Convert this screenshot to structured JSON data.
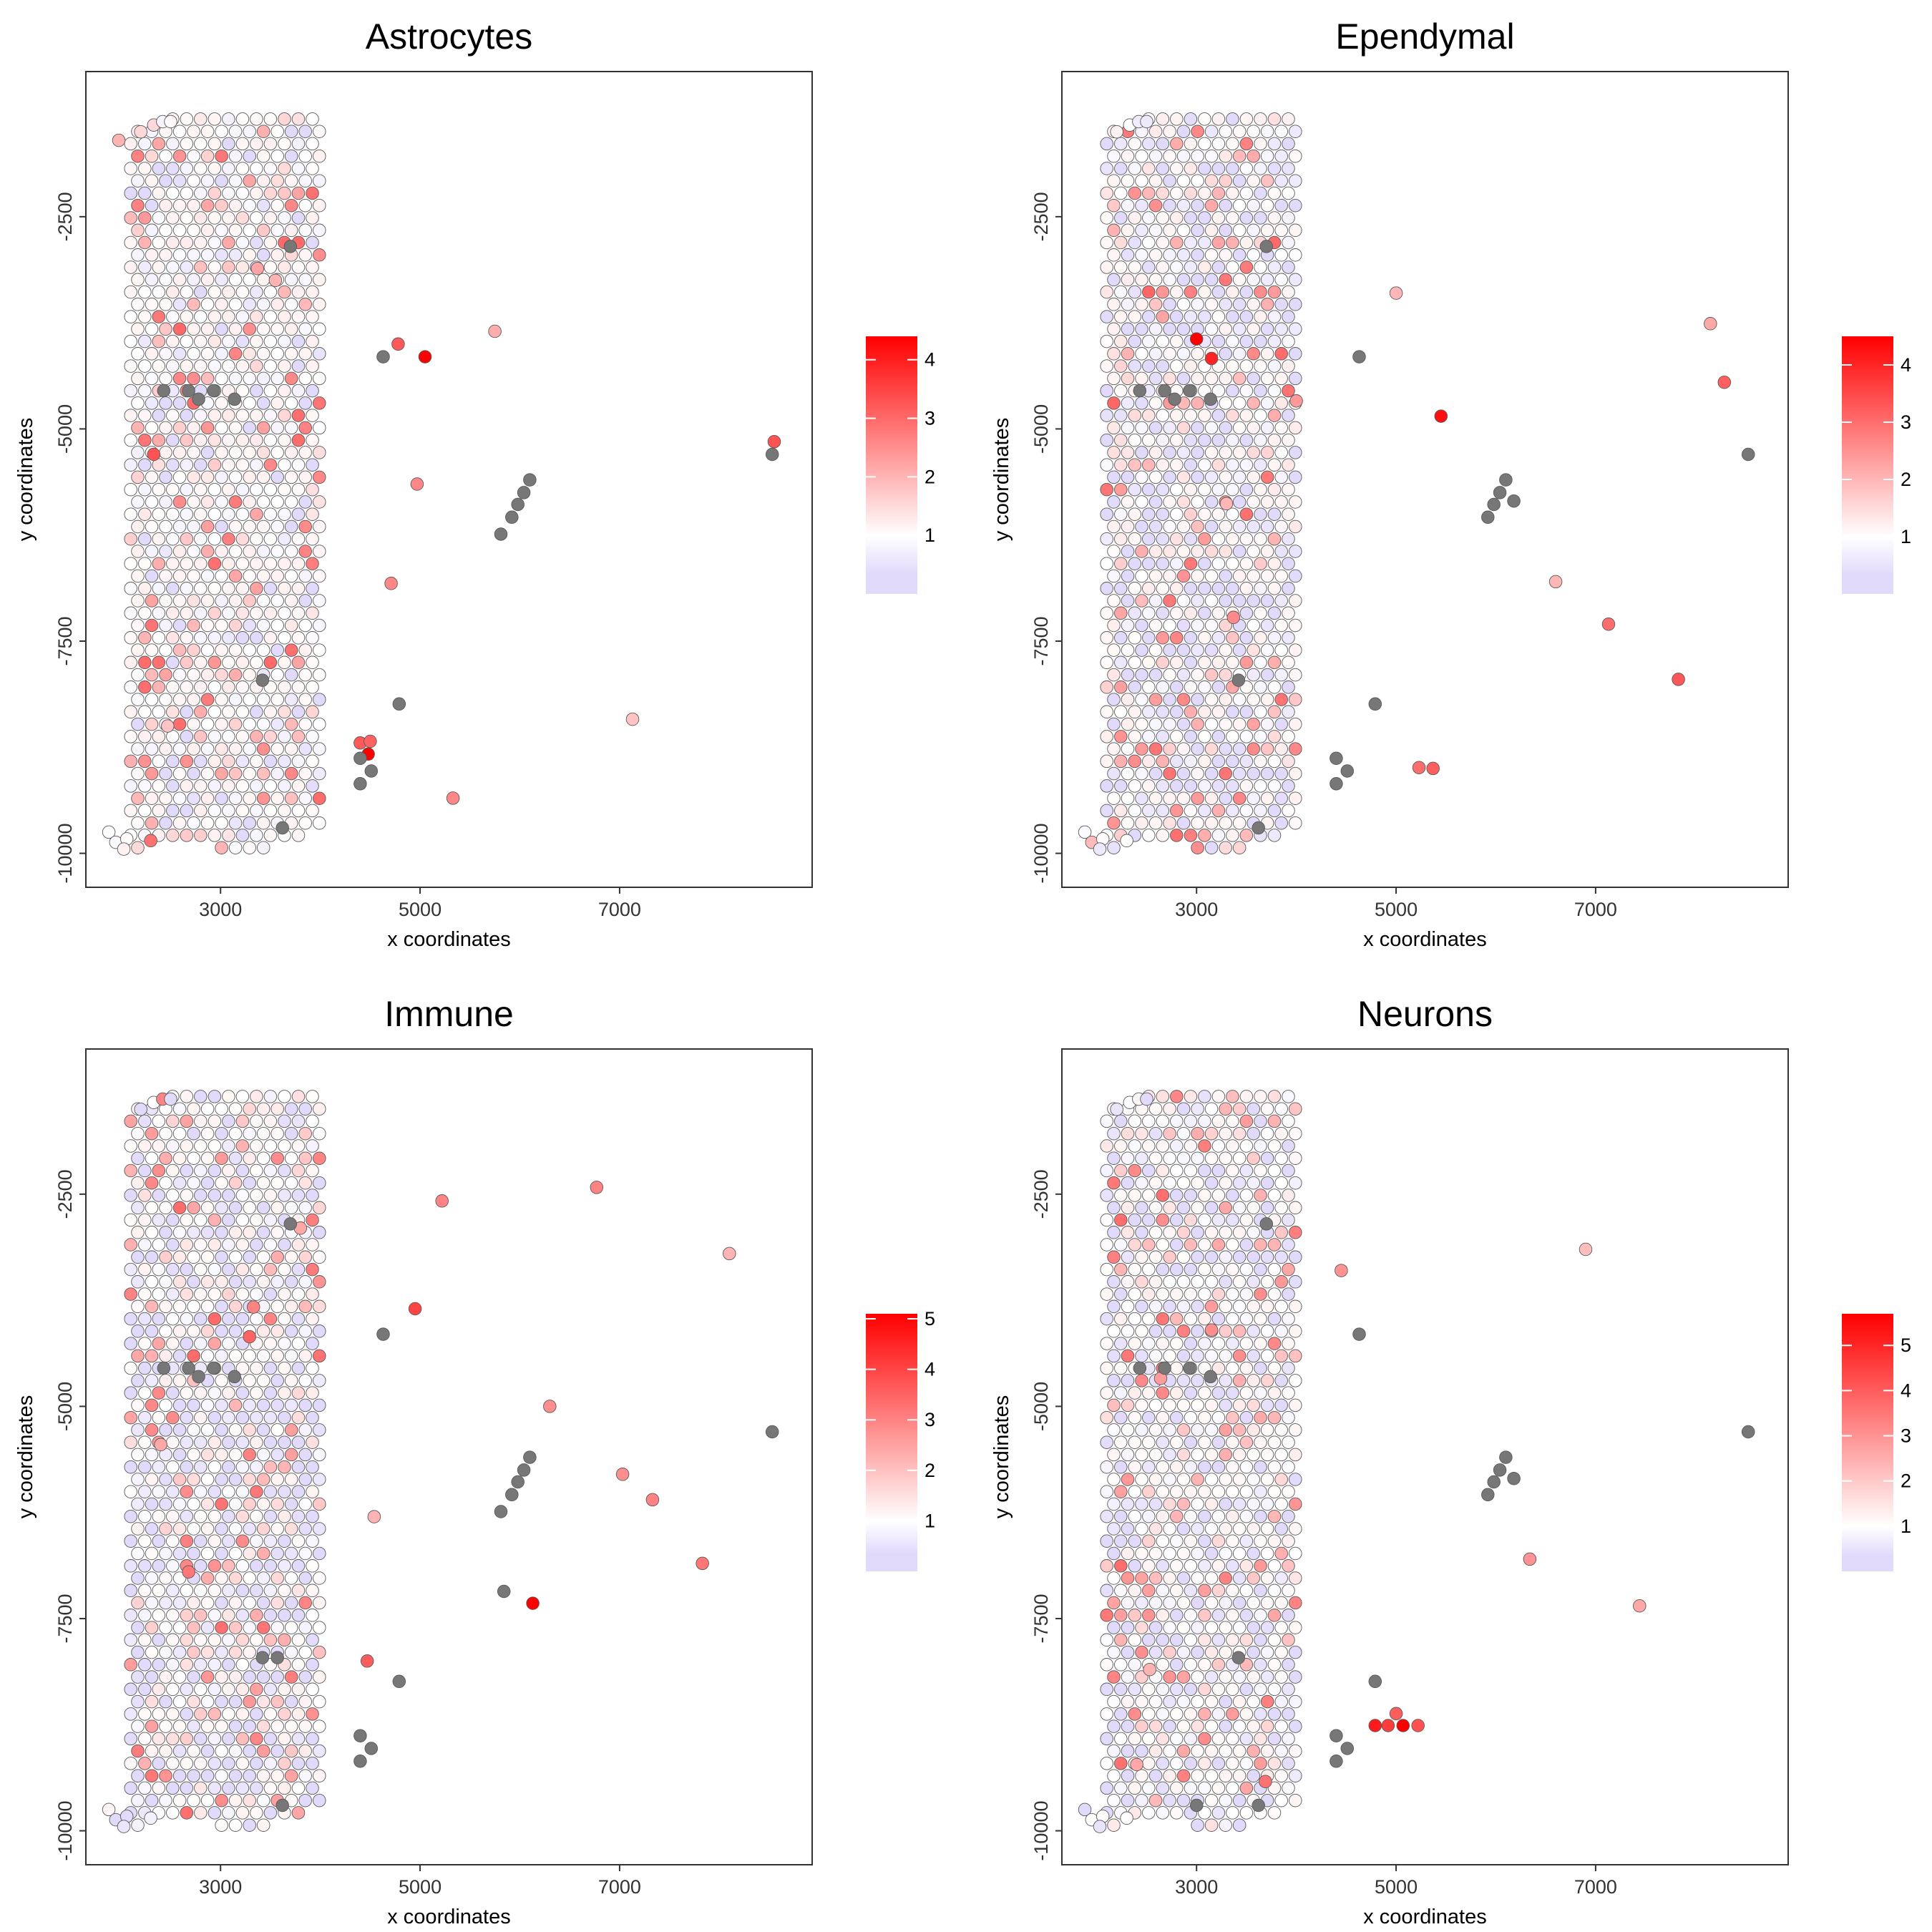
{
  "chart_data": [
    {
      "type": "scatter",
      "title": "Astrocytes",
      "xlabel": "x coordinates",
      "ylabel": "y coordinates",
      "xlim": [
        1650,
        8930
      ],
      "ylim": [
        -10400,
        -790
      ],
      "x_ticks": [
        3000,
        5000,
        7000
      ],
      "x_tick_labels": [
        "3000",
        "5000",
        "7000"
      ],
      "y_ticks": [
        -2500,
        -5000,
        -7500,
        -10000
      ],
      "y_tick_labels": [
        "-2500",
        "-5000",
        "-7500",
        "-10000"
      ],
      "legend": {
        "placement": "right",
        "range": [
          0,
          4.4
        ],
        "ticks": [
          1,
          2,
          3,
          4
        ],
        "tick_labels": [
          "1",
          "2",
          "3",
          "4"
        ]
      },
      "hotspots": [
        {
          "x": 5050,
          "y": -4150,
          "value": 4.4
        },
        {
          "x": 4480,
          "y": -8830,
          "value": 4.4
        },
        {
          "x": 4780,
          "y": -4000,
          "value": 3.2
        },
        {
          "x": 4400,
          "y": -8700,
          "value": 3.2
        },
        {
          "x": 4500,
          "y": -8680,
          "value": 3.1
        },
        {
          "x": 2330,
          "y": -5300,
          "value": 3.3
        },
        {
          "x": 8550,
          "y": -5150,
          "value": 3.3
        },
        {
          "x": 4970,
          "y": -5650,
          "value": 2.6
        },
        {
          "x": 4710,
          "y": -6820,
          "value": 2.6
        },
        {
          "x": 5330,
          "y": -9350,
          "value": 2.6
        },
        {
          "x": 3370,
          "y": -3110,
          "value": 2.2
        },
        {
          "x": 3550,
          "y": -3250,
          "value": 2.0
        },
        {
          "x": 5750,
          "y": -3850,
          "value": 2.1
        },
        {
          "x": 1980,
          "y": -1600,
          "value": 2.0
        },
        {
          "x": 7130,
          "y": -8420,
          "value": 1.8
        },
        {
          "x": 2470,
          "y": -8500,
          "value": 1.8
        }
      ],
      "missing": [
        {
          "x": 3700,
          "y": -2850
        },
        {
          "x": 2430,
          "y": -4550
        },
        {
          "x": 2680,
          "y": -4550
        },
        {
          "x": 2780,
          "y": -4650
        },
        {
          "x": 2930,
          "y": -4550
        },
        {
          "x": 3140,
          "y": -4650
        },
        {
          "x": 4630,
          "y": -4150
        },
        {
          "x": 5810,
          "y": -6240
        },
        {
          "x": 6100,
          "y": -5600
        },
        {
          "x": 6040,
          "y": -5750
        },
        {
          "x": 5980,
          "y": -5890
        },
        {
          "x": 5920,
          "y": -6040
        },
        {
          "x": 3420,
          "y": -7960
        },
        {
          "x": 4790,
          "y": -8240
        },
        {
          "x": 4400,
          "y": -8880
        },
        {
          "x": 4510,
          "y": -9030
        },
        {
          "x": 4400,
          "y": -9180
        },
        {
          "x": 3620,
          "y": -9700
        },
        {
          "x": 8530,
          "y": -5300
        }
      ]
    },
    {
      "type": "scatter",
      "title": "Ependymal",
      "xlabel": "x coordinates",
      "ylabel": "y coordinates",
      "xlim": [
        1650,
        8930
      ],
      "ylim": [
        -10400,
        -790
      ],
      "x_ticks": [
        3000,
        5000,
        7000
      ],
      "x_tick_labels": [
        "3000",
        "5000",
        "7000"
      ],
      "y_ticks": [
        -2500,
        -5000,
        -7500,
        -10000
      ],
      "y_tick_labels": [
        "-2500",
        "-5000",
        "-7500",
        "-10000"
      ],
      "legend": {
        "placement": "right",
        "range": [
          0,
          4.5
        ],
        "ticks": [
          1,
          2,
          3,
          4
        ],
        "tick_labels": [
          "1",
          "2",
          "3",
          "4"
        ]
      },
      "hotspots": [
        {
          "x": 3000,
          "y": -3940,
          "value": 4.5
        },
        {
          "x": 3150,
          "y": -4170,
          "value": 4.0
        },
        {
          "x": 5450,
          "y": -4850,
          "value": 4.3
        },
        {
          "x": 5370,
          "y": -9000,
          "value": 3.2
        },
        {
          "x": 5230,
          "y": -8990,
          "value": 3.0
        },
        {
          "x": 7830,
          "y": -7950,
          "value": 3.3
        },
        {
          "x": 8290,
          "y": -4450,
          "value": 3.2
        },
        {
          "x": 7130,
          "y": -7300,
          "value": 3.0
        },
        {
          "x": 3370,
          "y": -7220,
          "value": 2.6
        },
        {
          "x": 4000,
          "y": -4670,
          "value": 2.4
        },
        {
          "x": 8150,
          "y": -3760,
          "value": 2.2
        },
        {
          "x": 5000,
          "y": -3400,
          "value": 2.0
        },
        {
          "x": 3300,
          "y": -5880,
          "value": 2.0
        },
        {
          "x": 6600,
          "y": -6800,
          "value": 2.0
        }
      ],
      "missing": [
        {
          "x": 3700,
          "y": -2850
        },
        {
          "x": 2430,
          "y": -4550
        },
        {
          "x": 2680,
          "y": -4550
        },
        {
          "x": 2780,
          "y": -4650
        },
        {
          "x": 2930,
          "y": -4550
        },
        {
          "x": 3140,
          "y": -4650
        },
        {
          "x": 4630,
          "y": -4150
        },
        {
          "x": 6100,
          "y": -5600
        },
        {
          "x": 6040,
          "y": -5750
        },
        {
          "x": 5980,
          "y": -5890
        },
        {
          "x": 5920,
          "y": -6040
        },
        {
          "x": 6180,
          "y": -5850
        },
        {
          "x": 3420,
          "y": -7960
        },
        {
          "x": 4790,
          "y": -8240
        },
        {
          "x": 4400,
          "y": -8880
        },
        {
          "x": 4510,
          "y": -9030
        },
        {
          "x": 4400,
          "y": -9180
        },
        {
          "x": 3620,
          "y": -9700
        },
        {
          "x": 8530,
          "y": -5300
        }
      ]
    },
    {
      "type": "scatter",
      "title": "Immune",
      "xlabel": "x coordinates",
      "ylabel": "y coordinates",
      "xlim": [
        1650,
        8930
      ],
      "ylim": [
        -10400,
        -790
      ],
      "x_ticks": [
        3000,
        5000,
        7000
      ],
      "x_tick_labels": [
        "3000",
        "5000",
        "7000"
      ],
      "y_ticks": [
        -2500,
        -5000,
        -7500,
        -10000
      ],
      "y_tick_labels": [
        "-2500",
        "-5000",
        "-7500",
        "-10000"
      ],
      "legend": {
        "placement": "right",
        "range": [
          0,
          5.1
        ],
        "ticks": [
          1,
          2,
          3,
          4,
          5
        ],
        "tick_labels": [
          "1",
          "2",
          "3",
          "4",
          "5"
        ]
      },
      "hotspots": [
        {
          "x": 6130,
          "y": -7320,
          "value": 5.1
        },
        {
          "x": 4950,
          "y": -3850,
          "value": 4.0
        },
        {
          "x": 3290,
          "y": -4180,
          "value": 3.5
        },
        {
          "x": 4470,
          "y": -8000,
          "value": 3.6
        },
        {
          "x": 2680,
          "y": -6950,
          "value": 3.2
        },
        {
          "x": 7830,
          "y": -6850,
          "value": 3.2
        },
        {
          "x": 5220,
          "y": -2580,
          "value": 3.0
        },
        {
          "x": 6770,
          "y": -2420,
          "value": 3.0
        },
        {
          "x": 7330,
          "y": -6100,
          "value": 3.0
        },
        {
          "x": 3330,
          "y": -3830,
          "value": 3.0
        },
        {
          "x": 6300,
          "y": -5000,
          "value": 2.8
        },
        {
          "x": 7030,
          "y": -5800,
          "value": 2.8
        },
        {
          "x": 2400,
          "y": -5450,
          "value": 2.4
        },
        {
          "x": 3800,
          "y": -2900,
          "value": 2.4
        },
        {
          "x": 4540,
          "y": -6300,
          "value": 2.2
        },
        {
          "x": 8100,
          "y": -3200,
          "value": 2.2
        }
      ],
      "missing": [
        {
          "x": 3700,
          "y": -2850
        },
        {
          "x": 2430,
          "y": -4550
        },
        {
          "x": 2680,
          "y": -4550
        },
        {
          "x": 2780,
          "y": -4650
        },
        {
          "x": 2930,
          "y": -4550
        },
        {
          "x": 3140,
          "y": -4650
        },
        {
          "x": 4630,
          "y": -4150
        },
        {
          "x": 5810,
          "y": -6240
        },
        {
          "x": 6100,
          "y": -5600
        },
        {
          "x": 6040,
          "y": -5750
        },
        {
          "x": 5980,
          "y": -5890
        },
        {
          "x": 5920,
          "y": -6040
        },
        {
          "x": 3420,
          "y": -7960
        },
        {
          "x": 3570,
          "y": -7960
        },
        {
          "x": 4790,
          "y": -8240
        },
        {
          "x": 4400,
          "y": -8880
        },
        {
          "x": 4510,
          "y": -9030
        },
        {
          "x": 4400,
          "y": -9180
        },
        {
          "x": 3620,
          "y": -9700
        },
        {
          "x": 8530,
          "y": -5300
        },
        {
          "x": 5840,
          "y": -7180
        }
      ]
    },
    {
      "type": "scatter",
      "title": "Neurons",
      "xlabel": "x coordinates",
      "ylabel": "y coordinates",
      "xlim": [
        1650,
        8930
      ],
      "ylim": [
        -10400,
        -790
      ],
      "x_ticks": [
        3000,
        5000,
        7000
      ],
      "x_tick_labels": [
        "3000",
        "5000",
        "7000"
      ],
      "y_ticks": [
        -2500,
        -5000,
        -7500,
        -10000
      ],
      "y_tick_labels": [
        "-2500",
        "-5000",
        "-7500",
        "-10000"
      ],
      "legend": {
        "placement": "right",
        "range": [
          0,
          5.7
        ],
        "ticks": [
          1,
          2,
          3,
          4,
          5
        ],
        "tick_labels": [
          "1",
          "2",
          "3",
          "4",
          "5"
        ]
      },
      "hotspots": [
        {
          "x": 5070,
          "y": -8760,
          "value": 5.7
        },
        {
          "x": 4790,
          "y": -8760,
          "value": 5.2
        },
        {
          "x": 4920,
          "y": -8760,
          "value": 4.6
        },
        {
          "x": 5220,
          "y": -8760,
          "value": 4.2
        },
        {
          "x": 5000,
          "y": -8620,
          "value": 4.0
        },
        {
          "x": 3690,
          "y": -9420,
          "value": 3.6
        },
        {
          "x": 3150,
          "y": -4100,
          "value": 3.1
        },
        {
          "x": 4450,
          "y": -3400,
          "value": 3.0
        },
        {
          "x": 6340,
          "y": -6800,
          "value": 3.0
        },
        {
          "x": 2640,
          "y": -4670,
          "value": 2.8
        },
        {
          "x": 2400,
          "y": -9220,
          "value": 2.6
        },
        {
          "x": 2530,
          "y": -8100,
          "value": 2.4
        },
        {
          "x": 7440,
          "y": -7350,
          "value": 2.6
        },
        {
          "x": 6900,
          "y": -3150,
          "value": 2.2
        }
      ],
      "missing": [
        {
          "x": 3700,
          "y": -2850
        },
        {
          "x": 2430,
          "y": -4550
        },
        {
          "x": 2680,
          "y": -4550
        },
        {
          "x": 2930,
          "y": -4550
        },
        {
          "x": 3140,
          "y": -4650
        },
        {
          "x": 4630,
          "y": -4150
        },
        {
          "x": 6100,
          "y": -5600
        },
        {
          "x": 6040,
          "y": -5750
        },
        {
          "x": 5980,
          "y": -5890
        },
        {
          "x": 5920,
          "y": -6040
        },
        {
          "x": 6180,
          "y": -5850
        },
        {
          "x": 3420,
          "y": -7960
        },
        {
          "x": 4790,
          "y": -8240
        },
        {
          "x": 4400,
          "y": -8880
        },
        {
          "x": 4510,
          "y": -9030
        },
        {
          "x": 4400,
          "y": -9180
        },
        {
          "x": 3000,
          "y": -9700
        },
        {
          "x": 3620,
          "y": -9700
        },
        {
          "x": 8530,
          "y": -5300
        }
      ]
    }
  ],
  "colors": {
    "low": "#e2dafb",
    "mid": "#ffffff",
    "high": "#ff0000",
    "missing": "#777777",
    "panel_border": "#333333"
  },
  "color_scale": "white-to-red gradient with lavender below 1"
}
